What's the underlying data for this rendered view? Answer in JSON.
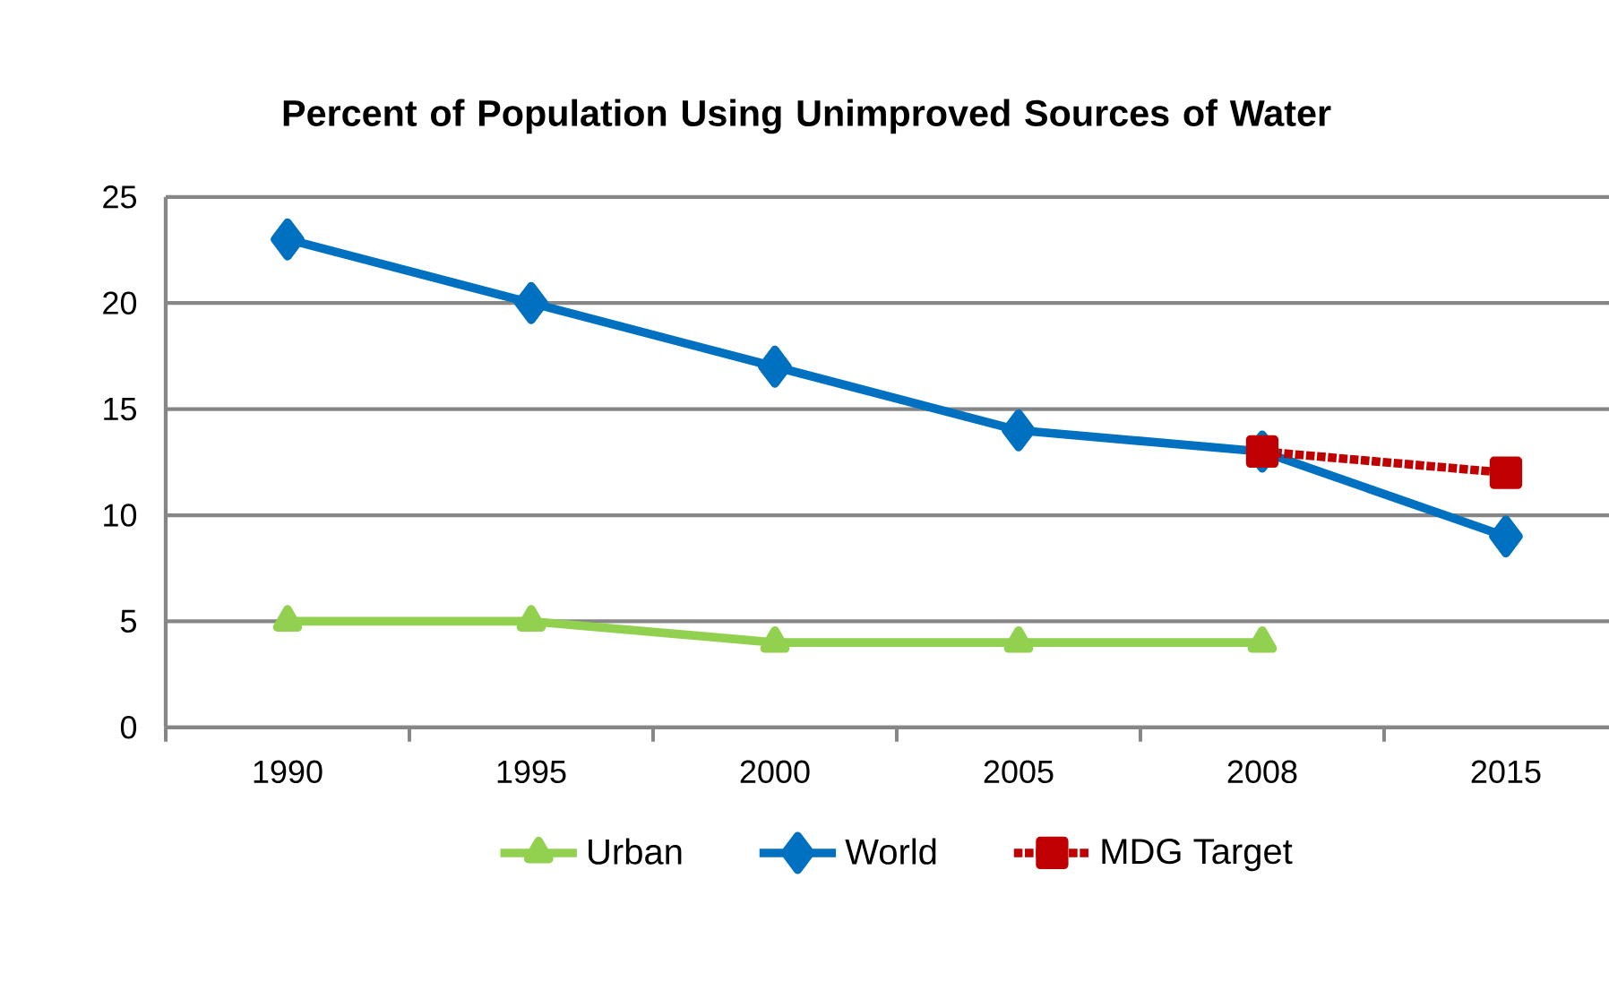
{
  "chart_data": {
    "type": "line",
    "title": "Percent of Population Using Unimproved Sources of Water",
    "categories": [
      "1990",
      "1995",
      "2000",
      "2005",
      "2008",
      "2015"
    ],
    "series": [
      {
        "name": "Urban",
        "color": "#92d050",
        "marker": "triangle",
        "line_style": "solid",
        "values": [
          5,
          5,
          4,
          4,
          4,
          null
        ]
      },
      {
        "name": "World",
        "color": "#0070c0",
        "marker": "diamond",
        "line_style": "solid",
        "values": [
          23,
          20,
          17,
          14,
          13,
          9
        ]
      },
      {
        "name": "MDG Target",
        "color": "#c00000",
        "marker": "square",
        "line_style": "dotted",
        "values": [
          null,
          null,
          null,
          null,
          13,
          12
        ]
      }
    ],
    "ylim": [
      0,
      25
    ],
    "yticks": [
      0,
      5,
      10,
      15,
      20,
      25
    ],
    "grid": "y",
    "legend": "bottom"
  }
}
